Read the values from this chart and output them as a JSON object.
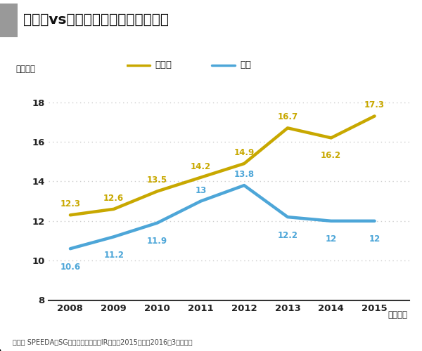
{
  "title": "ヤマトvs佐川：宅配便取り扱い個数",
  "ylabel": "（億個）",
  "xlabel_suffix": "（年度）",
  "source": "出所） SPEEDA、SGホールディングスIR資料。2015年度は2016年3月期決算",
  "years": [
    2008,
    2009,
    2010,
    2011,
    2012,
    2013,
    2014,
    2015
  ],
  "yamato": [
    12.3,
    12.6,
    13.5,
    14.2,
    14.9,
    16.7,
    16.2,
    17.3
  ],
  "sagawa": [
    10.6,
    11.2,
    11.9,
    13.0,
    13.8,
    12.2,
    12.0,
    12.0
  ],
  "yamato_color": "#C8A800",
  "sagawa_color": "#4DA6D8",
  "yamato_label": "ヤマト",
  "sagawa_label": "佐川",
  "ylim_min": 8,
  "ylim_max": 19,
  "yticks": [
    8,
    10,
    12,
    14,
    16,
    18
  ],
  "grid_color": "#CCCCCC",
  "title_rect_color": "#999999",
  "background_color": "#FFFFFF",
  "line_width": 3.2,
  "sagawa_label_short": "佐川"
}
